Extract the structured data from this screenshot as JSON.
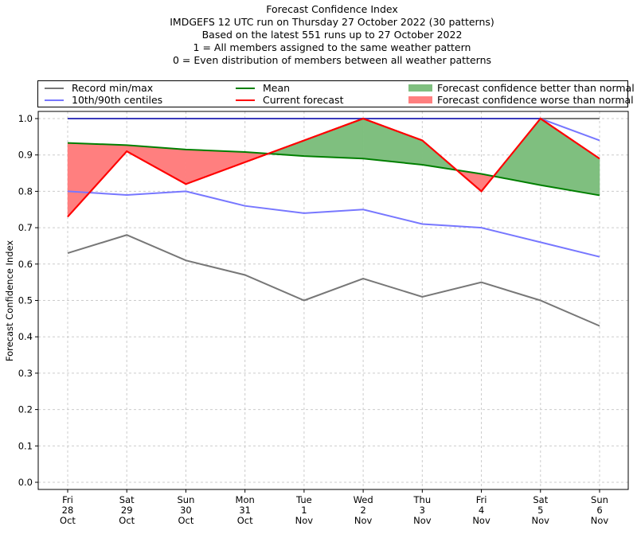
{
  "chart_data": {
    "type": "line",
    "title_lines": [
      "Forecast Confidence Index",
      "IMDGEFS 12 UTC run on Thursday 27 October 2022 (30 patterns)",
      "Based on the latest 551 runs up to 27 October 2022",
      "1 = All members assigned to the same weather pattern",
      "0 = Even distribution of members between all weather patterns"
    ],
    "xlabel": "",
    "ylabel": "Forecast Confidence Index",
    "ylim": [
      0.0,
      1.0
    ],
    "yticks": [
      "0.0",
      "0.1",
      "0.2",
      "0.3",
      "0.4",
      "0.5",
      "0.6",
      "0.7",
      "0.8",
      "0.9",
      "1.0"
    ],
    "grid": true,
    "legend_position": "top",
    "categories": [
      [
        "Fri",
        "28",
        "Oct"
      ],
      [
        "Sat",
        "29",
        "Oct"
      ],
      [
        "Sun",
        "30",
        "Oct"
      ],
      [
        "Mon",
        "31",
        "Oct"
      ],
      [
        "Tue",
        "1",
        "Nov"
      ],
      [
        "Wed",
        "2",
        "Nov"
      ],
      [
        "Thu",
        "3",
        "Nov"
      ],
      [
        "Fri",
        "4",
        "Nov"
      ],
      [
        "Sat",
        "5",
        "Nov"
      ],
      [
        "Sun",
        "6",
        "Nov"
      ]
    ],
    "series": [
      {
        "name": "Record min",
        "legend": "Record min/max",
        "color": "#777777",
        "values": [
          0.63,
          0.68,
          0.61,
          0.57,
          0.5,
          0.56,
          0.51,
          0.55,
          0.5,
          0.43
        ]
      },
      {
        "name": "Record max",
        "legend": "Record min/max",
        "color": "#777777",
        "values": [
          1.0,
          1.0,
          1.0,
          1.0,
          1.0,
          1.0,
          1.0,
          1.0,
          1.0,
          1.0
        ]
      },
      {
        "name": "10th centile",
        "legend": "10th/90th centiles",
        "color": "#7777ff",
        "values": [
          0.8,
          0.79,
          0.8,
          0.76,
          0.74,
          0.75,
          0.71,
          0.7,
          0.66,
          0.62
        ]
      },
      {
        "name": "90th centile",
        "legend": "10th/90th centiles",
        "color": "#7777ff",
        "values": [
          1.0,
          1.0,
          1.0,
          1.0,
          1.0,
          1.0,
          1.0,
          1.0,
          1.0,
          0.94
        ]
      },
      {
        "name": "Mean",
        "legend": "Mean",
        "color": "#007f00",
        "values": [
          0.933,
          0.927,
          0.915,
          0.908,
          0.897,
          0.89,
          0.873,
          0.848,
          0.817,
          0.789
        ]
      },
      {
        "name": "Current forecast",
        "legend": "Current forecast",
        "color": "#ff0000",
        "values": [
          0.73,
          0.91,
          0.82,
          0.88,
          0.94,
          1.0,
          0.94,
          0.8,
          1.0,
          0.89
        ]
      }
    ],
    "fills": [
      {
        "name": "Forecast confidence better than normal",
        "color": "#7fbf7f",
        "where": "current > mean"
      },
      {
        "name": "Forecast confidence worse than normal",
        "color": "#ff7f7f",
        "where": "current < mean"
      }
    ]
  },
  "legend": {
    "items": [
      {
        "label": "Record min/max",
        "kind": "line",
        "color": "#777777"
      },
      {
        "label": "10th/90th centiles",
        "kind": "line",
        "color": "#7777ff"
      },
      {
        "label": "Mean",
        "kind": "line",
        "color": "#007f00"
      },
      {
        "label": "Current forecast",
        "kind": "line",
        "color": "#ff0000"
      },
      {
        "label": "Forecast confidence better than normal",
        "kind": "patch",
        "color": "#7fbf7f"
      },
      {
        "label": "Forecast confidence worse than normal",
        "kind": "patch",
        "color": "#ff7f7f"
      }
    ]
  }
}
